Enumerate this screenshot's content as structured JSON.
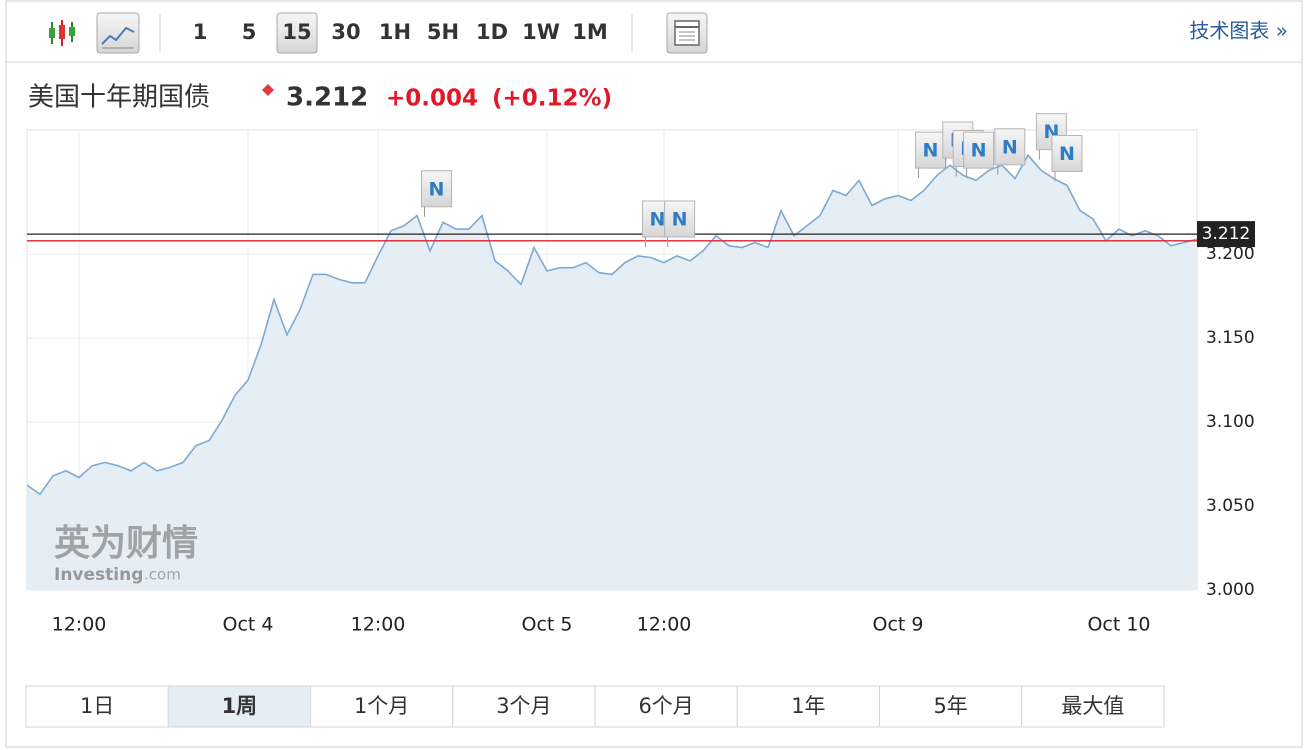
{
  "toolbar": {
    "intervals": [
      "1",
      "5",
      "15",
      "30",
      "1H",
      "5H",
      "1D",
      "1W",
      "1M"
    ],
    "active": 2,
    "link": "技术图表 »"
  },
  "header": {
    "title": "美国十年期国债",
    "price": "3.212",
    "change": "+0.004",
    "change_pct": "(+0.12%)"
  },
  "chart_data": {
    "type": "line",
    "categories": [
      null,
      null,
      null,
      null,
      "12:00",
      null,
      null,
      null,
      null,
      null,
      null,
      null,
      null,
      null,
      null,
      null,
      null,
      "Oct 4",
      null,
      null,
      null,
      null,
      null,
      null,
      null,
      null,
      null,
      "12:00",
      null,
      null,
      null,
      null,
      null,
      null,
      null,
      null,
      null,
      null,
      null,
      null,
      "Oct 5",
      null,
      null,
      null,
      null,
      null,
      null,
      null,
      null,
      "12:00",
      null,
      null,
      null,
      null,
      null,
      null,
      null,
      null,
      null,
      null,
      null,
      null,
      null,
      null,
      null,
      null,
      null,
      "Oct 9",
      null,
      null,
      null,
      null,
      null,
      null,
      null,
      null,
      null,
      null,
      null,
      null,
      null,
      null,
      null,
      null,
      "Oct 10",
      null,
      null,
      null,
      null,
      null,
      null
    ],
    "values": [
      3.0625,
      3.057,
      3.068,
      3.071,
      3.067,
      3.074,
      3.076,
      3.074,
      3.071,
      3.076,
      3.071,
      3.073,
      3.076,
      3.086,
      3.089,
      3.101,
      3.116,
      3.125,
      3.146,
      3.173,
      3.152,
      3.167,
      3.188,
      3.188,
      3.185,
      3.183,
      3.183,
      3.199,
      3.214,
      3.217,
      3.223,
      3.202,
      3.219,
      3.215,
      3.215,
      3.223,
      3.196,
      3.19,
      3.182,
      3.204,
      3.19,
      3.192,
      3.192,
      3.195,
      3.189,
      3.188,
      3.195,
      3.199,
      3.198,
      3.195,
      3.199,
      3.196,
      3.202,
      3.211,
      3.205,
      3.204,
      3.207,
      3.204,
      3.226,
      3.211,
      3.217,
      3.223,
      3.238,
      3.235,
      3.244,
      3.229,
      3.233,
      3.235,
      3.232,
      3.238,
      3.247,
      3.253,
      3.247,
      3.244,
      3.25,
      3.253,
      3.245,
      3.259,
      3.25,
      3.245,
      3.241,
      3.226,
      3.221,
      3.208,
      3.215,
      3.211,
      3.214,
      3.211,
      3.205,
      3.207,
      3.209
    ],
    "color": "#7ea9d1",
    "area_color": "#e6eef5",
    "ylim": [
      3.0,
      3.274
    ],
    "yticks": [
      {
        "value": 3.0,
        "label": "3.000"
      },
      {
        "value": 3.05,
        "label": "3.050"
      },
      {
        "value": 3.1,
        "label": "3.100"
      },
      {
        "value": 3.15,
        "label": "3.150"
      },
      {
        "value": 3.2,
        "label": "3.200"
      }
    ],
    "grid": true,
    "last_value": 3.212,
    "last_color": "#222222",
    "previous_close": 3.208,
    "previous_close_color": "#d9232d",
    "annotations": [
      {
        "text": "N",
        "x": 31.5,
        "y": 3.239
      },
      {
        "text": "N",
        "x": 48.5,
        "y": 3.221
      },
      {
        "text": "N",
        "x": 50.2,
        "y": 3.221
      },
      {
        "text": "N",
        "x": 69.5,
        "y": 3.262
      },
      {
        "text": "N",
        "x": 71.6,
        "y": 3.268
      },
      {
        "text": "N",
        "x": 72.4,
        "y": 3.263
      },
      {
        "text": "N",
        "x": 73.2,
        "y": 3.262
      },
      {
        "text": "N",
        "x": 75.6,
        "y": 3.264
      },
      {
        "text": "N",
        "x": 78.8,
        "y": 3.273
      },
      {
        "text": "N",
        "x": 80.0,
        "y": 3.26
      }
    ],
    "watermark": {
      "brand": "英为财情",
      "site": "Investing",
      "domain": ".com"
    }
  },
  "ranges": {
    "items": [
      "1日",
      "1周",
      "1个月",
      "3个月",
      "6个月",
      "1年",
      "5年",
      "最大值"
    ],
    "active": 1
  }
}
